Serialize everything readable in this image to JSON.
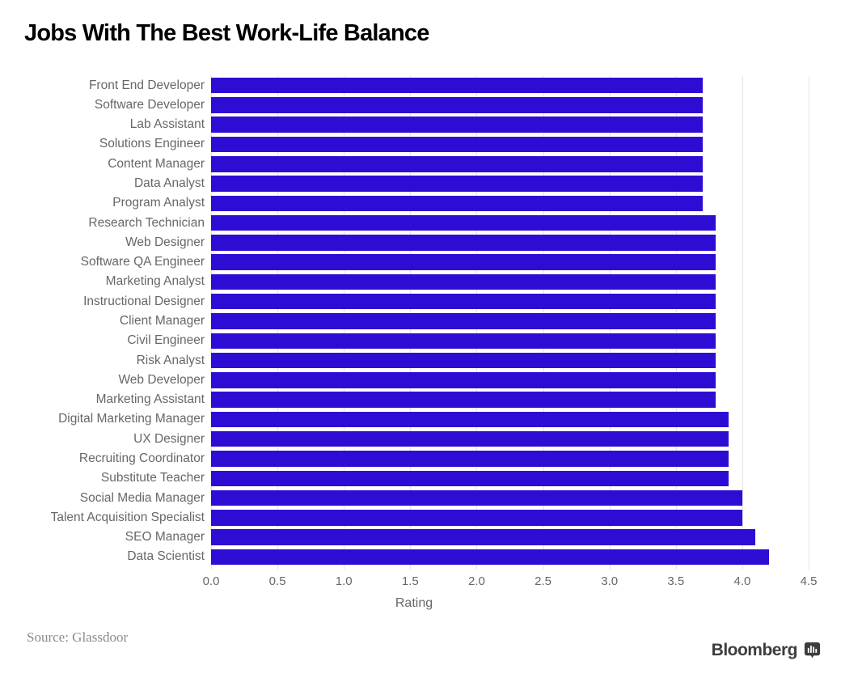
{
  "title": "Jobs With The Best Work-Life Balance",
  "chart_data": {
    "type": "bar",
    "orientation": "horizontal",
    "title": "Jobs With The Best Work-Life Balance",
    "xlabel": "Rating",
    "xlim": [
      0.0,
      4.5
    ],
    "xticks": [
      "0.0",
      "0.5",
      "1.0",
      "1.5",
      "2.0",
      "2.5",
      "3.0",
      "3.5",
      "4.0",
      "4.5"
    ],
    "grid": true,
    "legend": false,
    "bar_color": "#2f0cd4",
    "categories": [
      "Front End Developer",
      "Software Developer",
      "Lab Assistant",
      "Solutions Engineer",
      "Content Manager",
      "Data Analyst",
      "Program Analyst",
      "Research Technician",
      "Web Designer",
      "Software QA Engineer",
      "Marketing Analyst",
      "Instructional Designer",
      "Client Manager",
      "Civil Engineer",
      "Risk Analyst",
      "Web Developer",
      "Marketing Assistant",
      "Digital Marketing Manager",
      "UX Designer",
      "Recruiting Coordinator",
      "Substitute Teacher",
      "Social Media Manager",
      "Talent Acquisition Specialist",
      "SEO Manager",
      "Data Scientist"
    ],
    "values": [
      3.7,
      3.7,
      3.7,
      3.7,
      3.7,
      3.7,
      3.7,
      3.8,
      3.8,
      3.8,
      3.8,
      3.8,
      3.8,
      3.8,
      3.8,
      3.8,
      3.8,
      3.9,
      3.9,
      3.9,
      3.9,
      4.0,
      4.0,
      4.1,
      4.2
    ]
  },
  "footer": {
    "source": "Source: Glassdoor"
  },
  "branding": {
    "wordmark": "Bloomberg",
    "icon": "bloomberg-chart-icon"
  },
  "colors": {
    "bar": "#2f0cd4",
    "gridline": "#e4e4e4",
    "axis_text": "#676767",
    "title_text": "#000000",
    "source_text": "#8a8a8a",
    "brand": "#3d3d3d"
  }
}
